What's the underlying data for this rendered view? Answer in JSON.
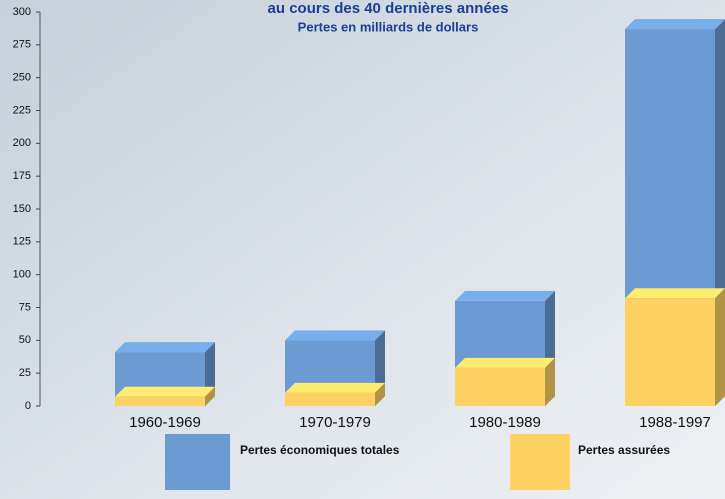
{
  "chart_data": {
    "type": "bar",
    "title": "au cours des 40 dernières années",
    "subtitle": "Pertes en milliards de dollars",
    "categories": [
      "1960-1969",
      "1970-1979",
      "1980-1989",
      "1988-1997"
    ],
    "series": [
      {
        "name": "Pertes économiques totales",
        "color": "#6b9bd2",
        "values": [
          41,
          50,
          80,
          287
        ]
      },
      {
        "name": "Pertes assurées",
        "color": "#fdd262",
        "values": [
          7,
          10,
          29,
          82
        ]
      }
    ],
    "ylim": [
      0,
      300
    ],
    "yticks": [
      0,
      25,
      50,
      75,
      100,
      125,
      150,
      175,
      200,
      225,
      250,
      275,
      300
    ]
  }
}
